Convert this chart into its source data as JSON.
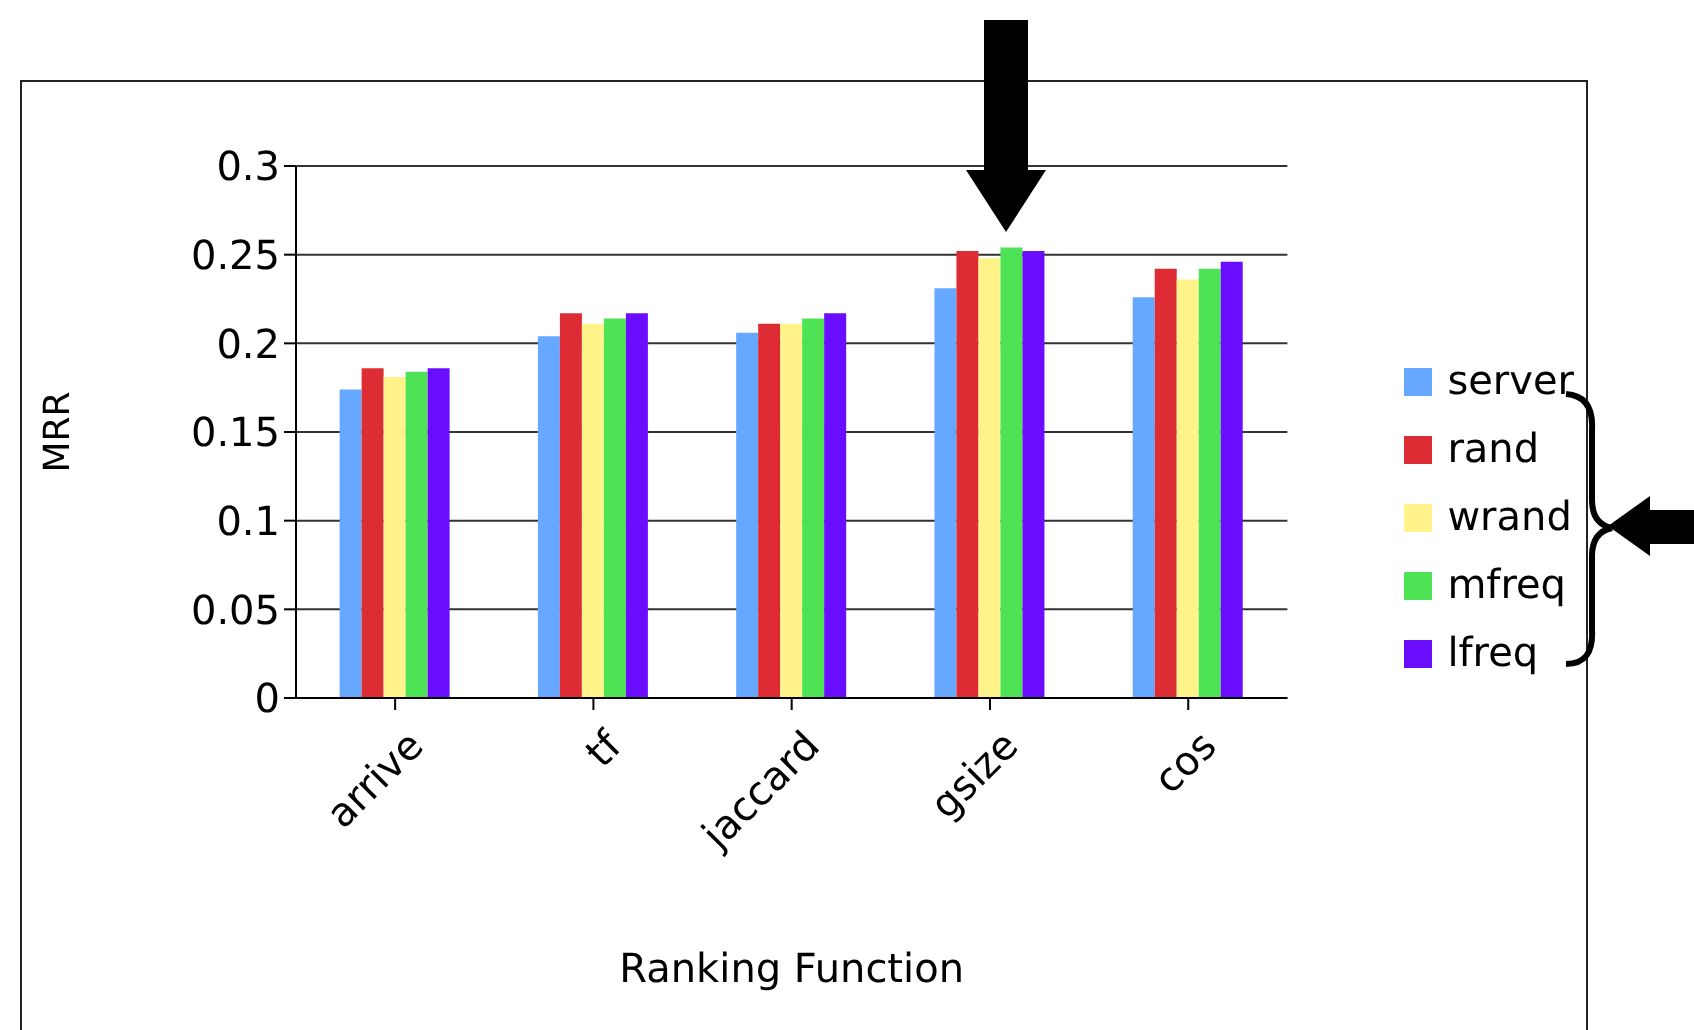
{
  "chart_data": {
    "type": "bar",
    "xlabel": "Ranking Function",
    "ylabel": "MRR",
    "categories": [
      "arrive",
      "tf",
      "jaccard",
      "gsize",
      "cos"
    ],
    "series": [
      {
        "name": "server",
        "color": "#66a8ff",
        "values": [
          0.174,
          0.204,
          0.206,
          0.231,
          0.226
        ]
      },
      {
        "name": "rand",
        "color": "#dd2c33",
        "values": [
          0.186,
          0.217,
          0.211,
          0.252,
          0.242
        ]
      },
      {
        "name": "wrand",
        "color": "#fff38a",
        "values": [
          0.181,
          0.211,
          0.211,
          0.248,
          0.236
        ]
      },
      {
        "name": "mfreq",
        "color": "#4ee355",
        "values": [
          0.184,
          0.214,
          0.214,
          0.254,
          0.242
        ]
      },
      {
        "name": "lfreq",
        "color": "#6a0dff",
        "values": [
          0.186,
          0.217,
          0.217,
          0.252,
          0.246
        ]
      }
    ],
    "ylim": [
      0,
      0.3
    ],
    "yticks": [
      0,
      0.05,
      0.1,
      0.15,
      0.2,
      0.25,
      0.3
    ],
    "grid": "y",
    "legend": "right"
  }
}
